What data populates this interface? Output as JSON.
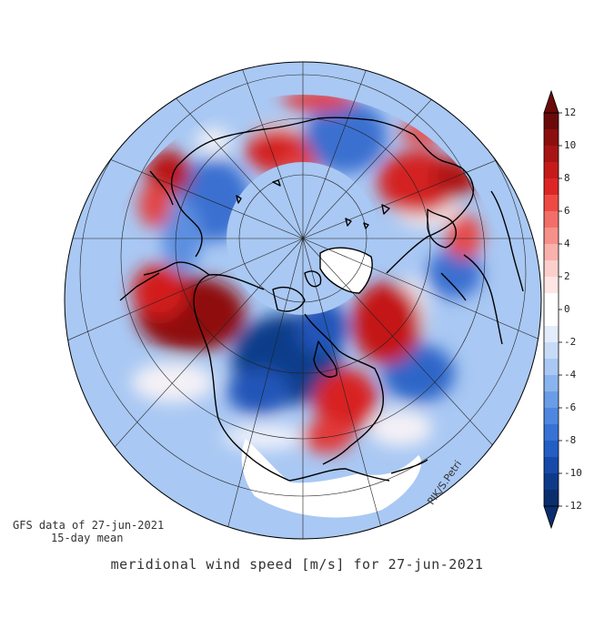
{
  "figure": {
    "title": "meridional wind speed [m/s] for 27-jun-2021",
    "source_line1": "GFS data of 27-jun-2021",
    "source_line2": "15-day mean",
    "credit": "PIK/S.Petri"
  },
  "colorbar": {
    "min": -12,
    "max": 12,
    "step": 1,
    "tick_labels": [
      "12",
      "10",
      "8",
      "6",
      "4",
      "2",
      "0",
      "-2",
      "-4",
      "-6",
      "-8",
      "-10",
      "-12"
    ],
    "colors_top_to_bottom": [
      "#6b0a0a",
      "#8b0f0f",
      "#a61414",
      "#c41a1a",
      "#dc2626",
      "#ee4a44",
      "#f36e68",
      "#f6908a",
      "#f9b1ab",
      "#fbcfcb",
      "#fde6e4",
      "#ffffff",
      "#ffffff",
      "#e2ecfb",
      "#c7dbf7",
      "#a9c8f3",
      "#8ab4ee",
      "#6b9de6",
      "#4f87df",
      "#3772d4",
      "#225ec4",
      "#1649a8",
      "#0e3a8a",
      "#0a2d6e"
    ]
  },
  "map": {
    "projection": "polar stereographic, North Pole",
    "ocean_color": "#a9c8f3",
    "coastline_color": "#000000"
  }
}
